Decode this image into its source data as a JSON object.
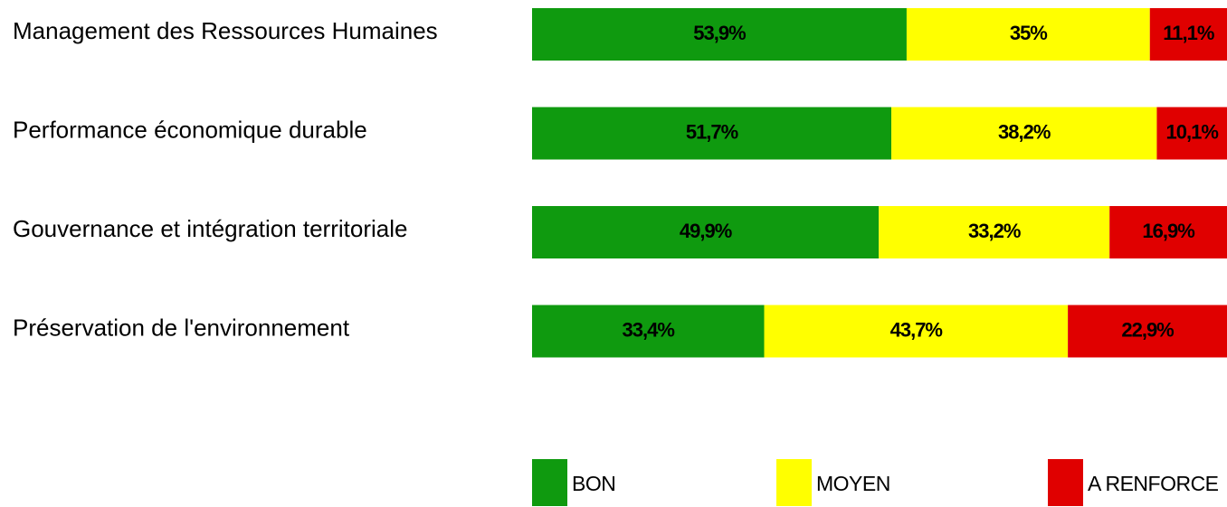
{
  "chart_data": {
    "type": "stacked-bar",
    "categories": [
      "Management des Ressources Humaines",
      "Performance économique durable",
      "Gouvernance et intégration territoriale",
      "Préservation de l'environnement"
    ],
    "series": [
      {
        "name": "BON",
        "color": "#0f9a0f",
        "values": [
          53.9,
          51.7,
          49.9,
          33.4
        ],
        "value_labels": [
          "53,9%",
          "51,7%",
          "49,9%",
          "33,4%"
        ]
      },
      {
        "name": "MOYEN",
        "color": "#ffff00",
        "values": [
          35,
          38.2,
          33.2,
          43.7
        ],
        "value_labels": [
          "35%",
          "38,2%",
          "33,2%",
          "43,7%"
        ]
      },
      {
        "name": "A RENFORCE",
        "color": "#e00000",
        "values": [
          11.1,
          10.1,
          16.9,
          22.9
        ],
        "value_labels": [
          "11,1%",
          "10,1%",
          "16,9%",
          "22,9%"
        ]
      }
    ],
    "legend": "bottom"
  }
}
